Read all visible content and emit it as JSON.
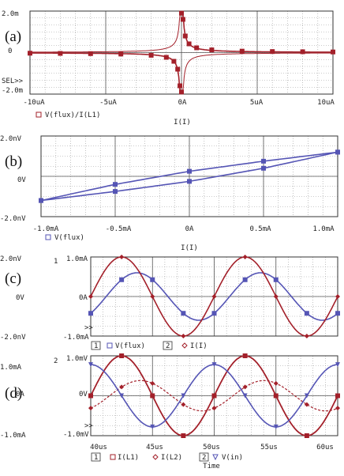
{
  "chart_data": [
    {
      "panel": "(a)",
      "type": "line",
      "x_ticks": [
        "-10uA",
        "-5uA",
        "0A",
        "5uA",
        "10uA"
      ],
      "y_ticks": [
        "2.0m",
        "0",
        "-2.0m"
      ],
      "xlim": [
        -10,
        10
      ],
      "ylim": [
        -0.002,
        0.002
      ],
      "xlabel": "I(I)",
      "note": "SEL>>",
      "legend": [
        "V(flux)/I(L1)"
      ],
      "series": [
        {
          "name": "V(flux)/I(L1)",
          "x_unit": "uA",
          "branch1": [
            [
              -10,
              -3e-05
            ],
            [
              -8,
              -4e-05
            ],
            [
              -6,
              -5e-05
            ],
            [
              -4,
              -7e-05
            ],
            [
              -2,
              -0.00013
            ],
            [
              -1,
              -0.00023
            ],
            [
              -0.5,
              -0.00042
            ],
            [
              -0.25,
              -0.0008
            ],
            [
              -0.1,
              -0.0016
            ],
            [
              0,
              -0.0019
            ]
          ],
          "branch2": [
            [
              0,
              0.0019
            ],
            [
              0.1,
              0.0016
            ],
            [
              0.25,
              0.0008
            ],
            [
              0.5,
              0.00042
            ],
            [
              1,
              0.00023
            ],
            [
              2,
              0.00013
            ],
            [
              4,
              7e-05
            ],
            [
              6,
              5e-05
            ],
            [
              8,
              4e-05
            ],
            [
              10,
              3e-05
            ]
          ]
        }
      ]
    },
    {
      "panel": "(b)",
      "type": "line",
      "x_ticks": [
        "-1.0mA",
        "-0.5mA",
        "0A",
        "0.5mA",
        "1.0mA"
      ],
      "y_ticks": [
        "2.0nV",
        "0V",
        "-2.0nV"
      ],
      "xlim": [
        -1.0,
        1.0
      ],
      "ylim": [
        -2.0,
        2.0
      ],
      "xlabel": "I(I)",
      "legend": [
        "V(flux)"
      ],
      "series": [
        {
          "name": "V(flux)",
          "x_unit": "mA",
          "y_unit": "nV",
          "upper_branch": [
            [
              -1.0,
              -1.2
            ],
            [
              -0.5,
              -0.4
            ],
            [
              0,
              0.25
            ],
            [
              0.5,
              0.75
            ],
            [
              1.0,
              1.2
            ]
          ],
          "lower_branch": [
            [
              1.0,
              1.2
            ],
            [
              0.5,
              0.4
            ],
            [
              0,
              -0.25
            ],
            [
              -0.5,
              -0.75
            ],
            [
              -1.0,
              -1.2
            ]
          ]
        }
      ]
    },
    {
      "panel": "(c)",
      "type": "line",
      "y_ticks": [
        "2.0nV",
        "0V",
        "-2.0nV"
      ],
      "y2_ticks": [
        "1.0mA",
        "0A",
        "-1.0mA"
      ],
      "xlim": [
        40,
        60
      ],
      "ylim": [
        -2.0,
        2.0
      ],
      "y2lim": [
        -1.0,
        1.0
      ],
      "axis_marks": [
        "1",
        "2",
        ">>"
      ],
      "legend": [
        {
          "axis": "1",
          "label": "V(flux)"
        },
        {
          "axis": "2",
          "label": "I(I)"
        }
      ],
      "series": [
        {
          "name": "V(flux)",
          "axis": "1",
          "unit": "nV",
          "period_us": 10,
          "amplitude": 1.2,
          "phase_deg": -45,
          "sample_x": [
            40,
            42.5,
            45,
            47.5,
            50,
            52.5,
            55,
            57.5,
            60
          ],
          "sample_y": [
            -0.85,
            0.85,
            0.85,
            -0.85,
            -0.85,
            0.85,
            0.85,
            -0.85,
            -0.85
          ]
        },
        {
          "name": "I(I)",
          "axis": "2",
          "unit": "mA",
          "period_us": 10,
          "amplitude": 1.0,
          "phase_deg": 0,
          "sample_x": [
            40,
            42.5,
            45,
            47.5,
            50,
            52.5,
            55,
            57.5,
            60
          ],
          "sample_y": [
            0,
            1.0,
            0,
            -1.0,
            0,
            1.0,
            0,
            -1.0,
            0
          ]
        }
      ]
    },
    {
      "panel": "(d)",
      "type": "line",
      "x_ticks": [
        "40us",
        "45us",
        "50us",
        "55us",
        "60us"
      ],
      "y_ticks": [
        "1.0mA",
        "0A",
        "-1.0mA"
      ],
      "y2_ticks": [
        "1.0mV",
        "0V",
        "-1.0mV"
      ],
      "xlim": [
        40,
        60
      ],
      "ylim": [
        -1.0,
        1.0
      ],
      "y2lim": [
        -1.0,
        1.0
      ],
      "xlabel": "Time",
      "axis_marks": [
        "2",
        ">>"
      ],
      "legend": [
        {
          "axis": "1",
          "label": "I(L1)"
        },
        {
          "axis": "",
          "label": "I(L2)"
        },
        {
          "axis": "2",
          "label": "V(in)"
        }
      ],
      "series": [
        {
          "name": "I(L1)",
          "axis": "1",
          "unit": "mA",
          "period_us": 10,
          "amplitude": 1.0,
          "phase_deg": 0,
          "sample_x": [
            40,
            42.5,
            45,
            47.5,
            50,
            52.5,
            55,
            57.5,
            60
          ],
          "sample_y": [
            0,
            1.0,
            0,
            -1.0,
            0,
            1.0,
            0,
            -1.0,
            0
          ]
        },
        {
          "name": "I(L2)",
          "axis": "1",
          "unit": "mA",
          "period_us": 10,
          "amplitude": 0.38,
          "phase_deg": -55,
          "sample_x": [
            40,
            42.5,
            45,
            47.5,
            50,
            52.5,
            55,
            57.5,
            60
          ],
          "sample_y": [
            -0.31,
            0.22,
            0.31,
            -0.22,
            -0.31,
            0.22,
            0.31,
            -0.22,
            -0.31
          ]
        },
        {
          "name": "V(in)",
          "axis": "2",
          "unit": "mV",
          "period_us": 10,
          "amplitude": 0.78,
          "phase_deg": 90,
          "sample_x": [
            40,
            42.5,
            45,
            47.5,
            50,
            52.5,
            55,
            57.5,
            60
          ],
          "sample_y": [
            0.78,
            0,
            -0.78,
            0,
            0.78,
            0,
            -0.78,
            0,
            0.78
          ]
        }
      ]
    }
  ],
  "colors": {
    "red": "#a3202a",
    "blue": "#5555b5",
    "grid": "#9a9a9a",
    "frame": "#333333"
  }
}
